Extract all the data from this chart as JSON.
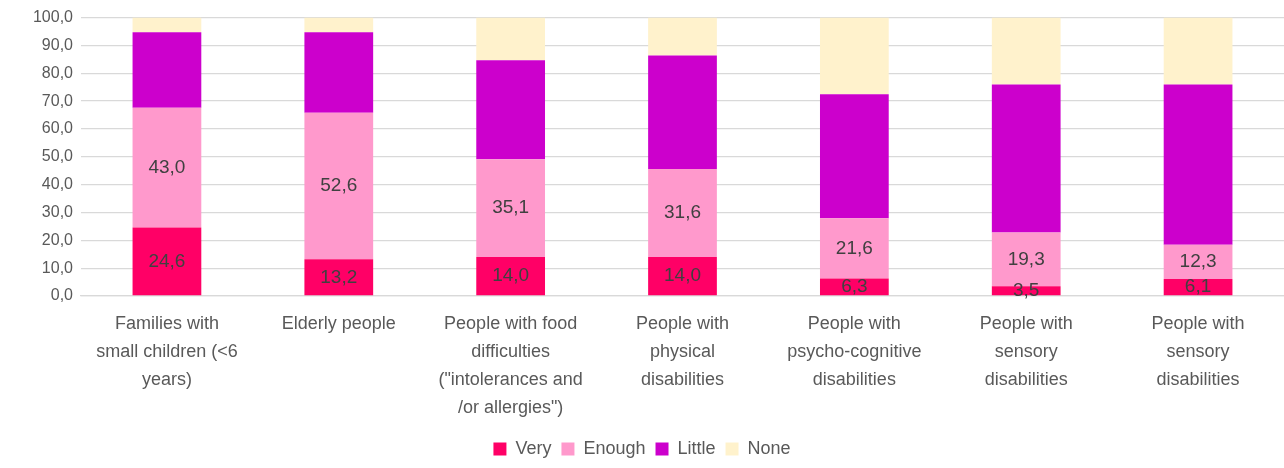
{
  "chart_data": {
    "type": "bar",
    "stacked": true,
    "categories": [
      "Families with small children (<6 years)",
      "Elderly people",
      "People with food difficulties (\"intolerances and /or allergies\")",
      "People with physical disabilities",
      "People with psycho-cognitive disabilities",
      "People with sensory disabilities",
      "People with sensory disabilities"
    ],
    "series": [
      {
        "name": "Very",
        "color": "#ff0066",
        "values": [
          24.6,
          13.2,
          14.0,
          14.0,
          6.3,
          3.5,
          6.1
        ],
        "value_labels": [
          "24,6",
          "13,2",
          "14,0",
          "14,0",
          "6,3",
          "3,5",
          "6,1"
        ]
      },
      {
        "name": "Enough",
        "color": "#ff99cc",
        "values": [
          43.0,
          52.6,
          35.1,
          31.6,
          21.6,
          19.3,
          12.3
        ],
        "value_labels": [
          "43,0",
          "52,6",
          "35,1",
          "31,6",
          "21,6",
          "19,3",
          "12,3"
        ]
      },
      {
        "name": "Little",
        "color": "#cc00cc",
        "values": [
          27.1,
          28.9,
          35.6,
          40.8,
          44.6,
          53.2,
          57.6
        ]
      },
      {
        "name": "None",
        "color": "#fff2cc",
        "values": [
          5.3,
          5.3,
          15.3,
          13.6,
          27.5,
          24.0,
          24.0
        ]
      }
    ],
    "ylim": [
      0,
      100
    ],
    "yticks": [
      {
        "value": 0,
        "label": "0,0"
      },
      {
        "value": 10,
        "label": "10,0"
      },
      {
        "value": 20,
        "label": "20,0"
      },
      {
        "value": 30,
        "label": "30,0"
      },
      {
        "value": 40,
        "label": "40,0"
      },
      {
        "value": 50,
        "label": "50,0"
      },
      {
        "value": 60,
        "label": "60,0"
      },
      {
        "value": 70,
        "label": "70,0"
      },
      {
        "value": 80,
        "label": "80,0"
      },
      {
        "value": 90,
        "label": "90,0"
      },
      {
        "value": 100,
        "label": "100,0"
      }
    ],
    "grid": "y",
    "legend": "bottom"
  }
}
